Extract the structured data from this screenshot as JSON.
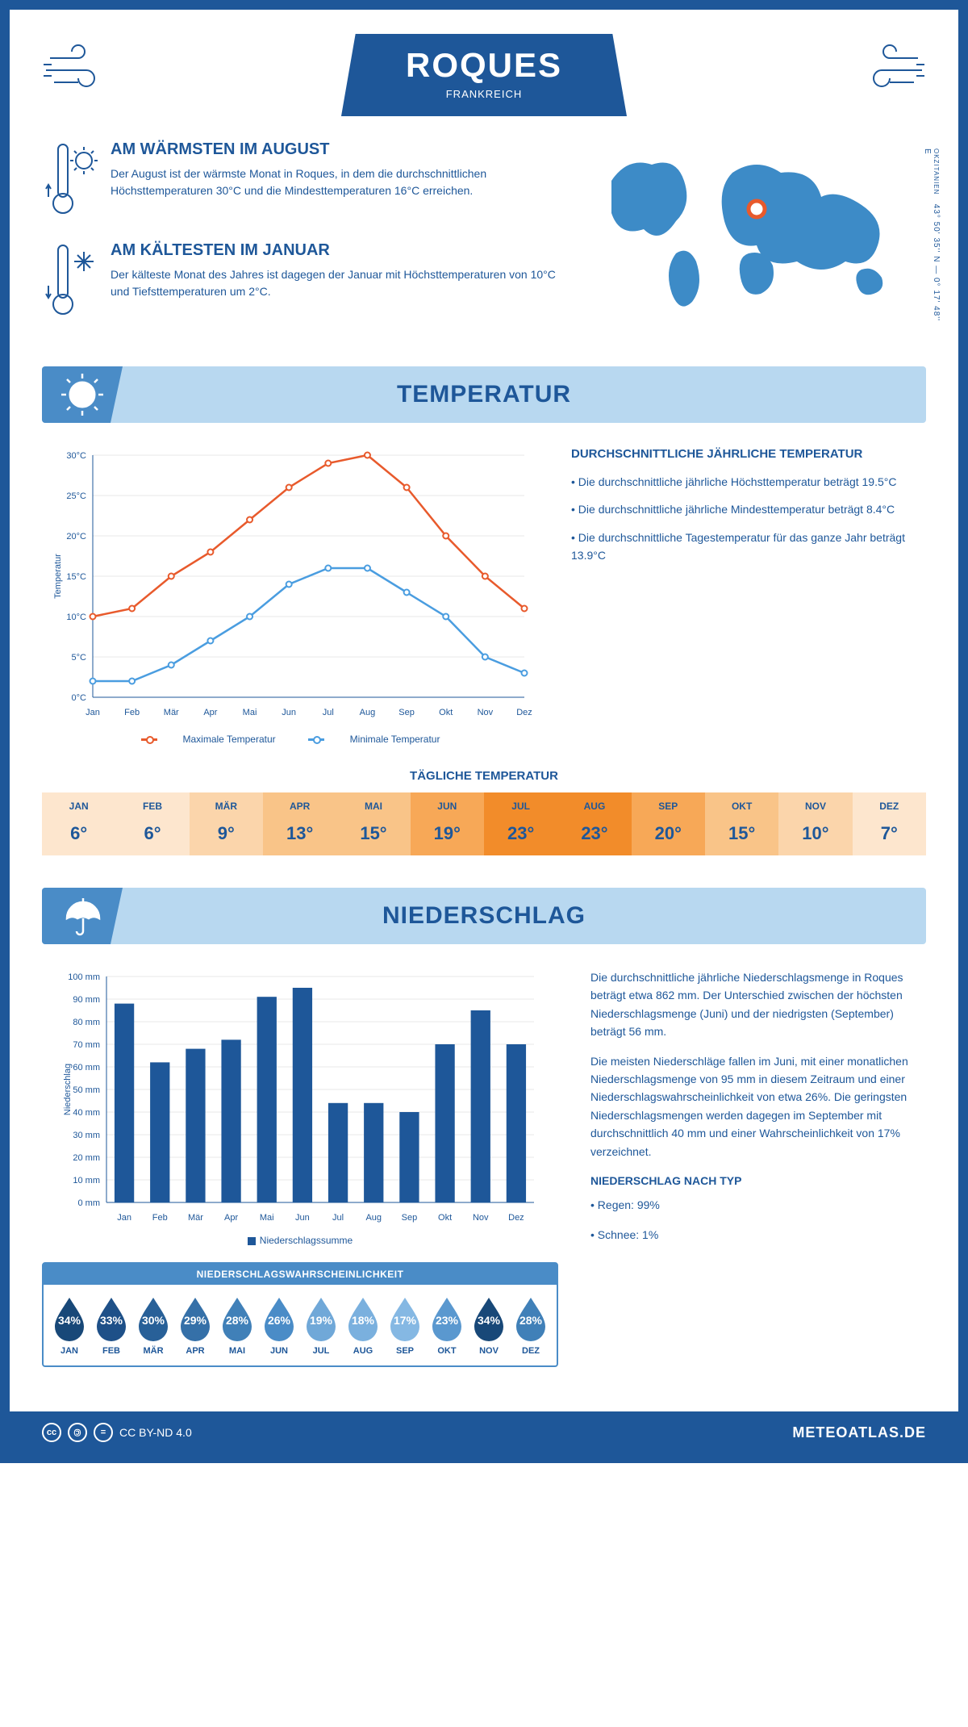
{
  "header": {
    "title": "ROQUES",
    "subtitle": "FRANKREICH"
  },
  "coords": {
    "region": "OKZITANIEN",
    "lat": "43° 50' 35'' N",
    "lon": "0° 17' 48'' E"
  },
  "warm": {
    "title": "AM WÄRMSTEN IM AUGUST",
    "text": "Der August ist der wärmste Monat in Roques, in dem die durchschnittlichen Höchsttemperaturen 30°C und die Mindesttemperaturen 16°C erreichen."
  },
  "cold": {
    "title": "AM KÄLTESTEN IM JANUAR",
    "text": "Der kälteste Monat des Jahres ist dagegen der Januar mit Höchsttemperaturen von 10°C und Tiefsttemperaturen um 2°C."
  },
  "temp_section": {
    "title": "TEMPERATUR",
    "ylabel": "Temperatur",
    "months": [
      "Jan",
      "Feb",
      "Mär",
      "Apr",
      "Mai",
      "Jun",
      "Jul",
      "Aug",
      "Sep",
      "Okt",
      "Nov",
      "Dez"
    ],
    "max": [
      10,
      11,
      15,
      18,
      22,
      26,
      29,
      30,
      26,
      20,
      15,
      11
    ],
    "min": [
      2,
      2,
      4,
      7,
      10,
      14,
      16,
      16,
      13,
      10,
      5,
      3
    ],
    "ylim": [
      0,
      30
    ],
    "ystep": 5,
    "max_color": "#e85a2c",
    "min_color": "#4a9de0",
    "grid_color": "#d0d0d0",
    "legend_max": "Maximale Temperatur",
    "legend_min": "Minimale Temperatur",
    "side_title": "DURCHSCHNITTLICHE JÄHRLICHE TEMPERATUR",
    "bullets": [
      "• Die durchschnittliche jährliche Höchsttemperatur beträgt 19.5°C",
      "• Die durchschnittliche jährliche Mindesttemperatur beträgt 8.4°C",
      "• Die durchschnittliche Tagestemperatur für das ganze Jahr beträgt 13.9°C"
    ]
  },
  "daily": {
    "title": "TÄGLICHE TEMPERATUR",
    "months": [
      "JAN",
      "FEB",
      "MÄR",
      "APR",
      "MAI",
      "JUN",
      "JUL",
      "AUG",
      "SEP",
      "OKT",
      "NOV",
      "DEZ"
    ],
    "temps": [
      "6°",
      "6°",
      "9°",
      "13°",
      "15°",
      "19°",
      "23°",
      "23°",
      "20°",
      "15°",
      "10°",
      "7°"
    ],
    "colors": [
      "#fde6ce",
      "#fde6ce",
      "#fbd5ab",
      "#f9c488",
      "#f9c488",
      "#f7a857",
      "#f28c2a",
      "#f28c2a",
      "#f7a857",
      "#f9c488",
      "#fbd5ab",
      "#fde6ce"
    ]
  },
  "precip_section": {
    "title": "NIEDERSCHLAG",
    "ylabel": "Niederschlag",
    "months": [
      "Jan",
      "Feb",
      "Mär",
      "Apr",
      "Mai",
      "Jun",
      "Jul",
      "Aug",
      "Sep",
      "Okt",
      "Nov",
      "Dez"
    ],
    "values": [
      88,
      62,
      68,
      72,
      91,
      95,
      44,
      44,
      40,
      70,
      85,
      70
    ],
    "ylim": [
      0,
      100
    ],
    "ystep": 10,
    "bar_color": "#1e5799",
    "grid_color": "#d0d0d0",
    "legend": "Niederschlagssumme",
    "para1": "Die durchschnittliche jährliche Niederschlagsmenge in Roques beträgt etwa 862 mm. Der Unterschied zwischen der höchsten Niederschlagsmenge (Juni) und der niedrigsten (September) beträgt 56 mm.",
    "para2": "Die meisten Niederschläge fallen im Juni, mit einer monatlichen Niederschlagsmenge von 95 mm in diesem Zeitraum und einer Niederschlagswahrscheinlichkeit von etwa 26%. Die geringsten Niederschlagsmengen werden dagegen im September mit durchschnittlich 40 mm und einer Wahrscheinlichkeit von 17% verzeichnet.",
    "type_title": "NIEDERSCHLAG NACH TYP",
    "type_bullets": [
      "• Regen: 99%",
      "• Schnee: 1%"
    ]
  },
  "prob": {
    "title": "NIEDERSCHLAGSWAHRSCHEINLICHKEIT",
    "months": [
      "JAN",
      "FEB",
      "MÄR",
      "APR",
      "MAI",
      "JUN",
      "JUL",
      "AUG",
      "SEP",
      "OKT",
      "NOV",
      "DEZ"
    ],
    "values": [
      "34%",
      "33%",
      "30%",
      "29%",
      "28%",
      "26%",
      "19%",
      "18%",
      "17%",
      "23%",
      "34%",
      "28%"
    ],
    "colors": [
      "#184878",
      "#1e5088",
      "#286098",
      "#3570a8",
      "#4080b8",
      "#4a8cc7",
      "#70a8d8",
      "#7ab0de",
      "#85b8e3",
      "#5a98cf",
      "#184878",
      "#4080b8"
    ]
  },
  "footer": {
    "license": "CC BY-ND 4.0",
    "brand": "METEOATLAS.DE"
  }
}
